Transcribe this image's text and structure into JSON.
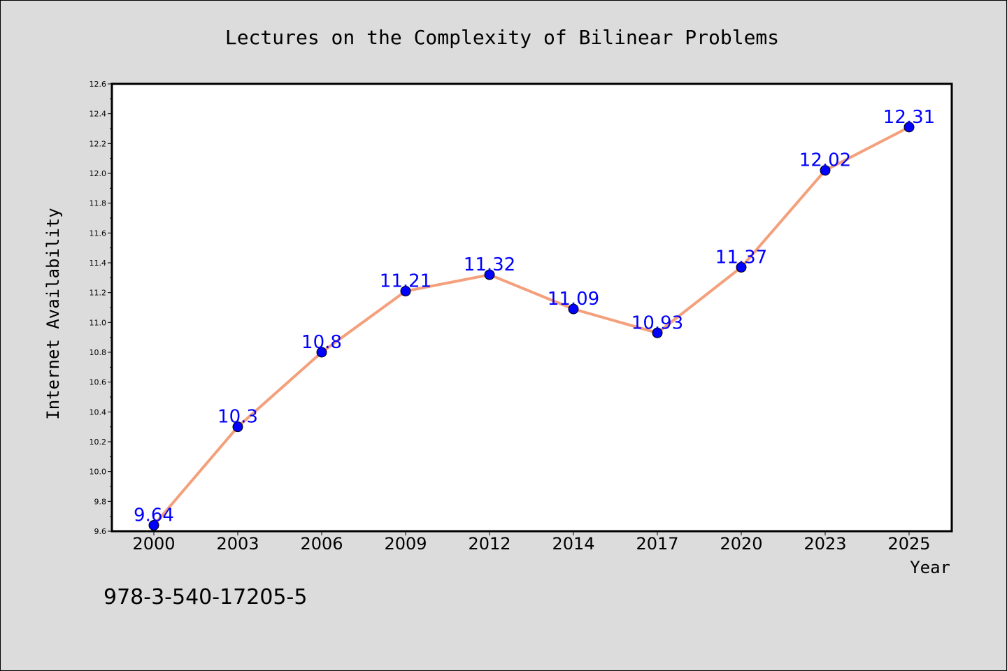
{
  "chart_data": {
    "type": "line",
    "title": "Lectures on the Complexity of Bilinear Problems",
    "xlabel": "Year",
    "ylabel": "Internet Availability",
    "categories": [
      "2000",
      "2003",
      "2006",
      "2009",
      "2012",
      "2014",
      "2017",
      "2020",
      "2023",
      "2025"
    ],
    "series": [
      {
        "values": [
          9.64,
          10.3,
          10.8,
          11.21,
          11.32,
          11.09,
          10.93,
          11.37,
          12.02,
          12.31
        ],
        "data_labels": [
          "9.64",
          "10.3",
          "10.8",
          "11.21",
          "11.32",
          "11.09",
          "10.93",
          "11.37",
          "12.02",
          "12.31"
        ]
      }
    ],
    "ylim": [
      9.6,
      12.6
    ],
    "yticks": [
      "9.6",
      "9.8",
      "10.0",
      "10.2",
      "10.4",
      "10.6",
      "10.8",
      "11.0",
      "11.2",
      "11.4",
      "11.6",
      "11.8",
      "12.0",
      "12.2",
      "12.4",
      "12.6"
    ],
    "grid": false,
    "line_color": "#f4a07c",
    "marker_color": "#0000ff",
    "label_color": "#0000ff",
    "background": "#dcdcdc",
    "plot_background": "#ffffff"
  },
  "footer": {
    "isbn": "978-3-540-17205-5"
  }
}
